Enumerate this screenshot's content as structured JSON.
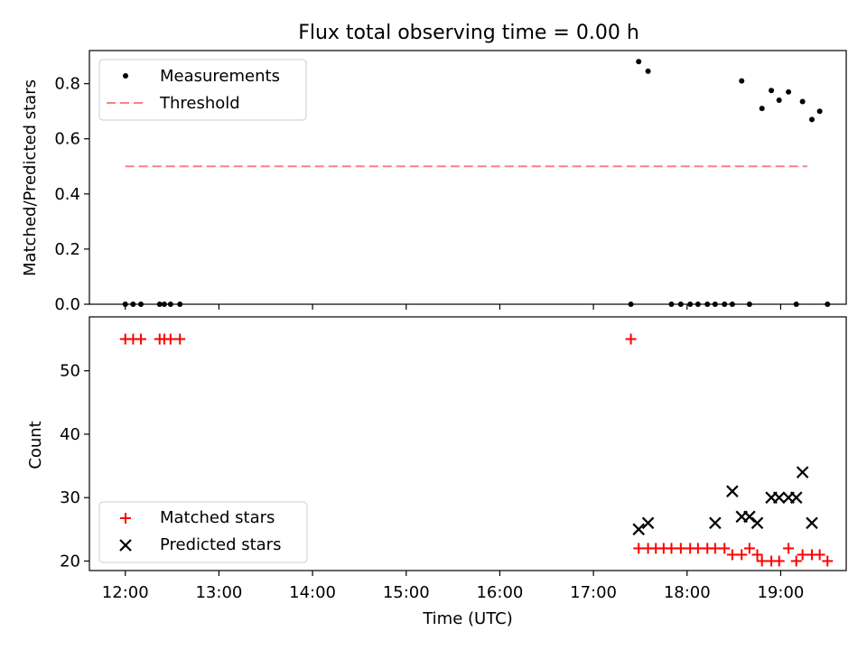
{
  "chart_data": {
    "title": "Flux total observing time = 0.00 h",
    "xlabel": "Time (UTC)",
    "xticks": [
      "12:00",
      "13:00",
      "14:00",
      "15:00",
      "16:00",
      "17:00",
      "18:00",
      "19:00"
    ],
    "xlim": [
      "11:37",
      "19:42"
    ],
    "top": {
      "type": "scatter",
      "ylabel": "Matched/Predicted stars",
      "ylim": [
        0,
        0.92
      ],
      "yticks": [
        "0.0",
        "0.2",
        "0.4",
        "0.6",
        "0.8"
      ],
      "legend_position": "upper-left",
      "series": [
        {
          "name": "Measurements",
          "color": "#000000",
          "marker": "dot",
          "x": [
            "12:00",
            "12:05",
            "12:10",
            "12:22",
            "12:25",
            "12:29",
            "12:35",
            "17:24",
            "17:29",
            "17:35",
            "17:50",
            "17:56",
            "18:02",
            "18:07",
            "18:13",
            "18:18",
            "18:24",
            "18:29",
            "18:35",
            "18:40",
            "18:48",
            "18:54",
            "18:59",
            "19:05",
            "19:10",
            "19:14",
            "19:20",
            "19:25",
            "19:30"
          ],
          "y": [
            0,
            0,
            0,
            0,
            0,
            0,
            0,
            0,
            0.88,
            0.845,
            0,
            0,
            0,
            0,
            0,
            0,
            0,
            0,
            0.81,
            0,
            0.71,
            0.775,
            0.74,
            0.77,
            0,
            0.735,
            0.67,
            0.7,
            0
          ]
        }
      ],
      "threshold": {
        "name": "Threshold",
        "value": 0.5,
        "x_start": "12:00",
        "x_end": "19:17",
        "color": "#ff7f7f"
      }
    },
    "bottom": {
      "type": "scatter",
      "ylabel": "Count",
      "ylim": [
        18.5,
        58.5
      ],
      "yticks": [
        "20",
        "30",
        "40",
        "50"
      ],
      "legend_position": "lower-left",
      "series": [
        {
          "name": "Matched stars",
          "color": "#ff0000",
          "marker": "plus",
          "x": [
            "12:00",
            "12:05",
            "12:10",
            "12:22",
            "12:25",
            "12:29",
            "12:35",
            "17:24",
            "17:29",
            "17:35",
            "17:40",
            "17:45",
            "17:50",
            "17:56",
            "18:02",
            "18:07",
            "18:13",
            "18:18",
            "18:24",
            "18:29",
            "18:35",
            "18:40",
            "18:45",
            "18:48",
            "18:54",
            "18:59",
            "19:05",
            "19:10",
            "19:14",
            "19:20",
            "19:25",
            "19:30"
          ],
          "y": [
            55,
            55,
            55,
            55,
            55,
            55,
            55,
            55,
            22,
            22,
            22,
            22,
            22,
            22,
            22,
            22,
            22,
            22,
            22,
            21,
            21,
            22,
            21,
            20,
            20,
            20,
            22,
            20,
            21,
            21,
            21,
            20
          ]
        },
        {
          "name": "Predicted stars",
          "color": "#000000",
          "marker": "cross",
          "x": [
            "17:29",
            "17:35",
            "18:18",
            "18:29",
            "18:35",
            "18:40",
            "18:45",
            "18:54",
            "18:59",
            "19:05",
            "19:10",
            "19:14",
            "19:20"
          ],
          "y": [
            25,
            26,
            26,
            31,
            27,
            27,
            26,
            30,
            30,
            30,
            30,
            34,
            26
          ]
        }
      ]
    }
  }
}
